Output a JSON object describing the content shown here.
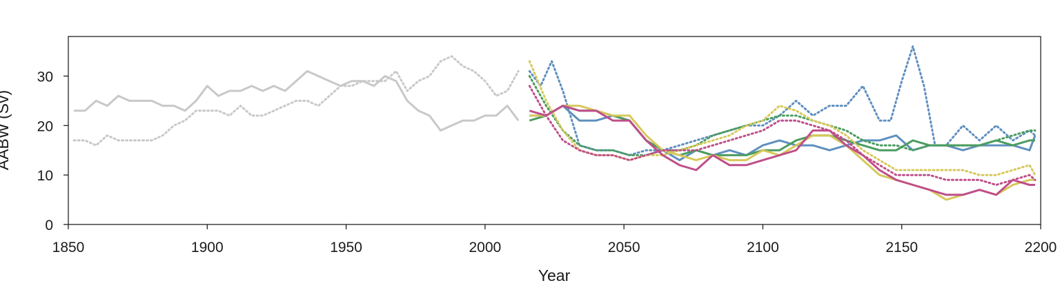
{
  "chart_data": {
    "type": "line",
    "xlabel": "Year",
    "ylabel": "AABW (Sv)",
    "xlim": [
      1850,
      2200
    ],
    "ylim": [
      0,
      38
    ],
    "xticks": [
      1850,
      1900,
      1950,
      2000,
      2050,
      2100,
      2150,
      2200
    ],
    "yticks": [
      0,
      10,
      20,
      30
    ],
    "grid": false,
    "series": [
      {
        "color": "#c8c8c8",
        "dash": "solid",
        "x": [
          1852,
          1856,
          1860,
          1864,
          1868,
          1872,
          1876,
          1880,
          1884,
          1888,
          1892,
          1896,
          1900,
          1904,
          1908,
          1912,
          1916,
          1920,
          1924,
          1928,
          1932,
          1936,
          1940,
          1944,
          1948,
          1952,
          1956,
          1960,
          1964,
          1968,
          1972,
          1976,
          1980,
          1984,
          1988,
          1992,
          1996,
          2000,
          2004,
          2008,
          2012
        ],
        "y": [
          23,
          23,
          25,
          24,
          26,
          25,
          25,
          25,
          24,
          24,
          23,
          25,
          28,
          26,
          27,
          27,
          28,
          27,
          28,
          27,
          29,
          31,
          30,
          29,
          28,
          29,
          29,
          28,
          30,
          29,
          25,
          23,
          22,
          19,
          20,
          21,
          21,
          22,
          22,
          24,
          21
        ]
      },
      {
        "color": "#c8c8c8",
        "dash": "dotted",
        "x": [
          1852,
          1856,
          1860,
          1864,
          1868,
          1872,
          1876,
          1880,
          1884,
          1888,
          1892,
          1896,
          1900,
          1904,
          1908,
          1912,
          1916,
          1920,
          1924,
          1928,
          1932,
          1936,
          1940,
          1944,
          1948,
          1952,
          1956,
          1960,
          1964,
          1968,
          1972,
          1976,
          1980,
          1984,
          1988,
          1992,
          1996,
          2000,
          2004,
          2008,
          2012
        ],
        "y": [
          17,
          17,
          16,
          18,
          17,
          17,
          17,
          17,
          18,
          20,
          21,
          23,
          23,
          23,
          22,
          24,
          22,
          22,
          23,
          24,
          25,
          25,
          24,
          26,
          28,
          28,
          29,
          29,
          29,
          31,
          27,
          29,
          30,
          33,
          34,
          32,
          31,
          29,
          26,
          27,
          31
        ]
      },
      {
        "color": "#5e8fbf",
        "dash": "solid",
        "x": [
          2016,
          2022,
          2028,
          2034,
          2040,
          2046,
          2052,
          2058,
          2064,
          2070,
          2076,
          2082,
          2088,
          2094,
          2100,
          2106,
          2112,
          2118,
          2124,
          2130,
          2136,
          2142,
          2148,
          2154,
          2160,
          2166,
          2172,
          2178,
          2184,
          2190,
          2196,
          2198
        ],
        "y": [
          22,
          22,
          24,
          21,
          21,
          22,
          21,
          17,
          15,
          13,
          15,
          14,
          15,
          14,
          16,
          17,
          16,
          16,
          15,
          16,
          17,
          17,
          18,
          15,
          16,
          16,
          15,
          16,
          16,
          16,
          15,
          18
        ]
      },
      {
        "color": "#5e8fbf",
        "dash": "dotted",
        "x": [
          2016,
          2020,
          2024,
          2028,
          2034,
          2040,
          2046,
          2052,
          2058,
          2064,
          2070,
          2076,
          2082,
          2088,
          2094,
          2100,
          2106,
          2112,
          2118,
          2124,
          2130,
          2136,
          2142,
          2146,
          2150,
          2154,
          2158,
          2162,
          2166,
          2172,
          2178,
          2184,
          2190,
          2196,
          2198
        ],
        "y": [
          31,
          28,
          33,
          27,
          16,
          15,
          15,
          14,
          15,
          15,
          16,
          17,
          18,
          19,
          20,
          20,
          22,
          25,
          22,
          24,
          24,
          28,
          21,
          21,
          29,
          36,
          28,
          16,
          16,
          20,
          17,
          20,
          17,
          19,
          18
        ]
      },
      {
        "color": "#4b9c5f",
        "dash": "solid",
        "x": [
          2016,
          2022,
          2028,
          2034,
          2040,
          2046,
          2052,
          2058,
          2064,
          2070,
          2076,
          2082,
          2088,
          2094,
          2100,
          2106,
          2112,
          2118,
          2124,
          2130,
          2136,
          2142,
          2148,
          2154,
          2160,
          2166,
          2172,
          2178,
          2184,
          2190,
          2196,
          2198
        ],
        "y": [
          21,
          22,
          24,
          23,
          23,
          22,
          21,
          17,
          15,
          14,
          15,
          14,
          14,
          14,
          15,
          15,
          17,
          18,
          18,
          17,
          16,
          15,
          15,
          17,
          16,
          16,
          16,
          16,
          17,
          16,
          17,
          17
        ]
      },
      {
        "color": "#4b9c5f",
        "dash": "dotted",
        "x": [
          2016,
          2022,
          2028,
          2034,
          2040,
          2046,
          2052,
          2058,
          2064,
          2070,
          2076,
          2082,
          2088,
          2094,
          2100,
          2106,
          2112,
          2118,
          2124,
          2130,
          2136,
          2142,
          2148,
          2154,
          2160,
          2166,
          2172,
          2178,
          2184,
          2190,
          2196,
          2198
        ],
        "y": [
          30,
          24,
          19,
          16,
          15,
          15,
          14,
          14,
          15,
          15,
          16,
          18,
          19,
          20,
          21,
          22,
          22,
          21,
          20,
          19,
          17,
          16,
          16,
          15,
          16,
          16,
          16,
          16,
          17,
          18,
          19,
          19
        ]
      },
      {
        "color": "#d7c85a",
        "dash": "solid",
        "x": [
          2016,
          2022,
          2028,
          2034,
          2040,
          2046,
          2052,
          2058,
          2064,
          2070,
          2076,
          2082,
          2088,
          2094,
          2100,
          2106,
          2112,
          2118,
          2124,
          2130,
          2136,
          2142,
          2148,
          2154,
          2160,
          2166,
          2172,
          2178,
          2184,
          2190,
          2196,
          2198
        ],
        "y": [
          22,
          22,
          24,
          24,
          23,
          22,
          22,
          18,
          15,
          14,
          13,
          14,
          13,
          13,
          15,
          14,
          16,
          18,
          18,
          16,
          13,
          10,
          9,
          8,
          7,
          5,
          6,
          7,
          6,
          8,
          9,
          9
        ]
      },
      {
        "color": "#d7c85a",
        "dash": "dotted",
        "x": [
          2016,
          2022,
          2028,
          2034,
          2040,
          2046,
          2052,
          2058,
          2064,
          2070,
          2076,
          2082,
          2088,
          2094,
          2100,
          2106,
          2112,
          2118,
          2124,
          2130,
          2136,
          2142,
          2148,
          2154,
          2160,
          2166,
          2172,
          2178,
          2184,
          2190,
          2196,
          2198
        ],
        "y": [
          33,
          25,
          19,
          15,
          14,
          14,
          13,
          14,
          14,
          15,
          16,
          17,
          18,
          20,
          21,
          24,
          23,
          21,
          20,
          18,
          15,
          13,
          11,
          11,
          11,
          11,
          11,
          10,
          10,
          11,
          12,
          10
        ]
      },
      {
        "color": "#bf4e8a",
        "dash": "solid",
        "x": [
          2016,
          2022,
          2028,
          2034,
          2040,
          2046,
          2052,
          2058,
          2064,
          2070,
          2076,
          2082,
          2088,
          2094,
          2100,
          2106,
          2112,
          2118,
          2124,
          2130,
          2136,
          2142,
          2148,
          2154,
          2160,
          2166,
          2172,
          2178,
          2184,
          2190,
          2196,
          2198
        ],
        "y": [
          23,
          22,
          24,
          23,
          23,
          21,
          21,
          17,
          14,
          12,
          11,
          14,
          12,
          12,
          13,
          14,
          15,
          19,
          19,
          16,
          14,
          11,
          9,
          8,
          7,
          6,
          6,
          7,
          6,
          9,
          8,
          8
        ]
      },
      {
        "color": "#bf4e8a",
        "dash": "dotted",
        "x": [
          2016,
          2022,
          2028,
          2034,
          2040,
          2046,
          2052,
          2058,
          2064,
          2070,
          2076,
          2082,
          2088,
          2094,
          2100,
          2106,
          2112,
          2118,
          2124,
          2130,
          2136,
          2142,
          2148,
          2154,
          2160,
          2166,
          2172,
          2178,
          2184,
          2190,
          2196,
          2198
        ],
        "y": [
          28,
          22,
          17,
          15,
          14,
          14,
          13,
          14,
          15,
          15,
          15,
          16,
          17,
          18,
          19,
          21,
          21,
          20,
          19,
          17,
          14,
          12,
          10,
          10,
          10,
          9,
          9,
          9,
          8,
          9,
          10,
          9
        ]
      }
    ]
  }
}
